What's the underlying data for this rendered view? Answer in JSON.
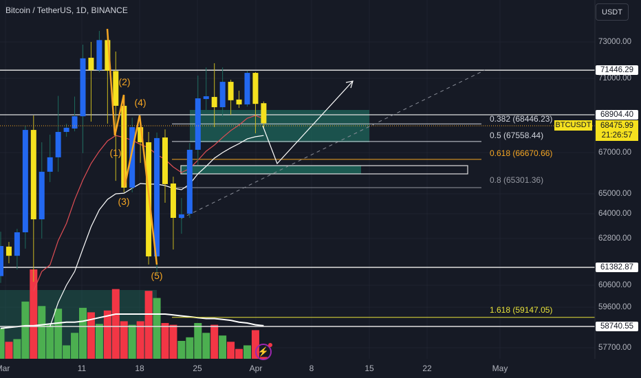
{
  "header": {
    "title": "Bitcoin / TetherUS, 1D, BINANCE",
    "currency": "USDT"
  },
  "colors": {
    "up": "#2368f0",
    "down": "#f5e11f",
    "vol_up": "#4caf50",
    "vol_down": "#f23645",
    "ma_fast": "#e04e55",
    "ma_slow": "#ffffff",
    "fib_orange": "#f5a623",
    "fib_yellow": "#e8e23a"
  },
  "chart_data": {
    "type": "candlestick",
    "title": "Bitcoin / TetherUS, 1D, BINANCE",
    "dates": [
      "Mar 1",
      "Mar 2",
      "Mar 3",
      "Mar 4",
      "Mar 5",
      "Mar 6",
      "Mar 7",
      "Mar 8",
      "Mar 9",
      "Mar 10",
      "Mar 11",
      "Mar 12",
      "Mar 13",
      "Mar 14",
      "Mar 15",
      "Mar 16",
      "Mar 17",
      "Mar 18",
      "Mar 19",
      "Mar 20",
      "Mar 21",
      "Mar 22",
      "Mar 23",
      "Mar 24",
      "Mar 25",
      "Mar 26",
      "Mar 27",
      "Mar 28",
      "Mar 29",
      "Mar 30",
      "Mar 31",
      "Apr 1",
      "Apr 2"
    ],
    "ohlc": [
      [
        61000,
        63130,
        60700,
        62430
      ],
      [
        62400,
        62630,
        61580,
        61950
      ],
      [
        61950,
        63270,
        61290,
        63100
      ],
      [
        63100,
        68350,
        62300,
        68140
      ],
      [
        68140,
        68870,
        60750,
        63730
      ],
      [
        63730,
        67520,
        62800,
        66070
      ],
      [
        66070,
        67900,
        65570,
        66770
      ],
      [
        66770,
        69990,
        66070,
        68040
      ],
      [
        68040,
        68450,
        67800,
        68250
      ],
      [
        68210,
        69950,
        68070,
        68830
      ],
      [
        68830,
        72850,
        66970,
        72100
      ],
      [
        72130,
        73000,
        68560,
        71450
      ],
      [
        71450,
        73600,
        71340,
        73100
      ],
      [
        73100,
        73700,
        68460,
        71420
      ],
      [
        71400,
        72470,
        65630,
        69420
      ],
      [
        69420,
        69450,
        65070,
        65300
      ],
      [
        65300,
        68760,
        65070,
        68280
      ],
      [
        68280,
        68450,
        66500,
        67520
      ],
      [
        67520,
        68040,
        61520,
        61920
      ],
      [
        61920,
        68010,
        61050,
        67730
      ],
      [
        67760,
        68170,
        64550,
        65470
      ],
      [
        65500,
        65830,
        62260,
        63800
      ],
      [
        63800,
        64790,
        63030,
        63970
      ],
      [
        64000,
        67480,
        63800,
        67140
      ],
      [
        67140,
        71150,
        66400,
        69850
      ],
      [
        69810,
        71600,
        69180,
        69970
      ],
      [
        69930,
        71830,
        68280,
        69340
      ],
      [
        69340,
        71600,
        68800,
        70800
      ],
      [
        70800,
        70920,
        68900,
        69740
      ],
      [
        69780,
        70290,
        69300,
        69500
      ],
      [
        69500,
        71420,
        69380,
        71300
      ],
      [
        71300,
        71340,
        67970,
        69530
      ],
      [
        69570,
        69670,
        68240,
        68476
      ]
    ],
    "volume_relative": [
      34,
      19,
      22,
      64,
      100,
      59,
      38,
      56,
      15,
      29,
      57,
      52,
      39,
      54,
      78,
      42,
      38,
      42,
      76,
      68,
      40,
      38,
      20,
      24,
      40,
      29,
      38,
      26,
      19,
      11,
      15,
      32,
      2
    ],
    "volume_ma_relative": [
      34,
      35,
      36,
      37,
      37,
      38,
      39,
      40,
      41,
      41,
      42,
      44,
      46,
      48,
      50,
      50,
      50,
      50,
      50,
      50,
      50,
      49,
      48,
      47,
      46,
      45,
      45,
      44,
      43,
      41,
      40,
      38,
      37
    ],
    "ma_fast": [
      null,
      null,
      null,
      null,
      60330,
      61200,
      61500,
      62700,
      63530,
      64700,
      65670,
      66470,
      67070,
      67590,
      67860,
      67760,
      67620,
      67410,
      67240,
      66900,
      66670,
      66300,
      66030,
      66230,
      66630,
      67070,
      67380,
      67760,
      68110,
      68390,
      68730,
      68870,
      68700
    ],
    "ma_slow": [
      null,
      null,
      null,
      null,
      null,
      null,
      58740,
      59815,
      60600,
      61200,
      62290,
      63370,
      64200,
      64720,
      65000,
      65030,
      65270,
      65500,
      65470,
      65470,
      65400,
      65270,
      65200,
      65470,
      65970,
      66330,
      66730,
      67000,
      67240,
      67450,
      67690,
      67800,
      67860
    ],
    "y_axis_ticks": [
      "73000.00",
      "71000.00",
      "67000.00",
      "65000.00",
      "64000.00",
      "62800.00",
      "60600.00",
      "59600.00",
      "57700.00"
    ],
    "x_axis_ticks": [
      "Mar",
      "11",
      "18",
      "25",
      "Apr",
      "8",
      "15",
      "22",
      "May"
    ],
    "price_labels": {
      "level1": "71446.29",
      "level2": "68904.40",
      "level3": "61382.87",
      "level4": "58740.55"
    },
    "current": {
      "symbol": "BTCUSDT",
      "price": "68475.99",
      "countdown": "21:26:57"
    },
    "fib_levels": [
      {
        "label": "0.382 (68446.23)",
        "price": 68446.23
      },
      {
        "label": "0.5 (67558.44)",
        "price": 67558.44
      },
      {
        "label": "0.618 (66670.66)",
        "price": 66670.66
      },
      {
        "label": "0.8 (65301.36)",
        "price": 65301.36
      },
      {
        "label": "1.618 (59147.05)",
        "price": 59147.05
      }
    ],
    "wave_labels": [
      "(1)",
      "(2)",
      "(3)",
      "(4)",
      "(5)"
    ]
  }
}
